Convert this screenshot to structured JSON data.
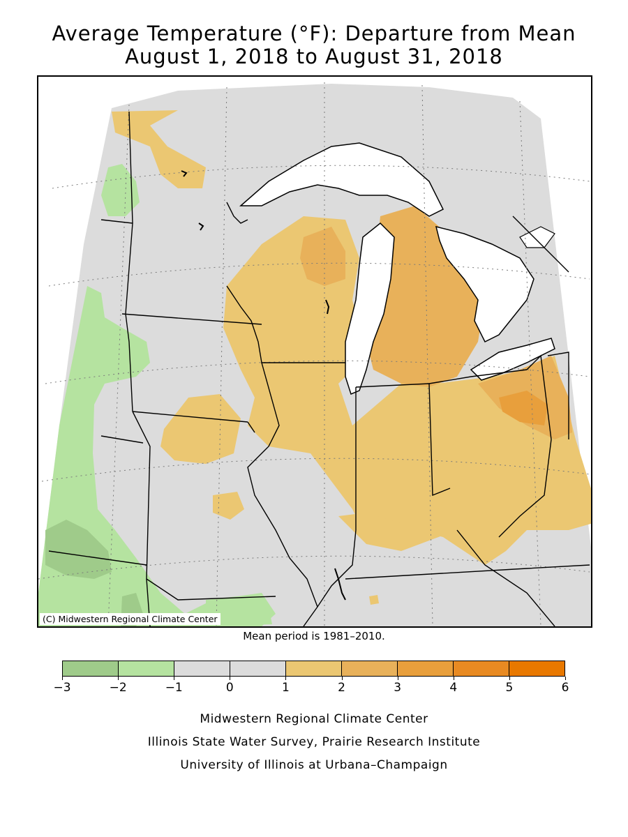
{
  "header": {
    "title_line1": "Average Temperature (°F): Departure from Mean",
    "title_line2": "August 1, 2018 to August 31, 2018"
  },
  "map": {
    "copyright": "(C) Midwestern Regional Climate Center",
    "region": "Midwest"
  },
  "mean_period": "Mean period is 1981–2010.",
  "legend": {
    "bins": [
      {
        "range": [
          -3,
          -2
        ],
        "color": "#9fcb8a"
      },
      {
        "range": [
          -2,
          -1
        ],
        "color": "#b5e3a0"
      },
      {
        "range": [
          -1,
          0
        ],
        "color": "#dcdcdc"
      },
      {
        "range": [
          0,
          1
        ],
        "color": "#dcdcdc"
      },
      {
        "range": [
          1,
          2
        ],
        "color": "#ebc772"
      },
      {
        "range": [
          2,
          3
        ],
        "color": "#e8b15a"
      },
      {
        "range": [
          3,
          4
        ],
        "color": "#e89f3c"
      },
      {
        "range": [
          4,
          5
        ],
        "color": "#e88a22"
      },
      {
        "range": [
          5,
          6
        ],
        "color": "#e87800"
      }
    ],
    "ticks": [
      "−3",
      "−2",
      "−1",
      "0",
      "1",
      "2",
      "3",
      "4",
      "5",
      "6"
    ]
  },
  "credits": {
    "line1": "Midwestern Regional Climate Center",
    "line2": "Illinois State Water Survey, Prairie Research Institute",
    "line3": "University of Illinois at Urbana–Champaign"
  }
}
